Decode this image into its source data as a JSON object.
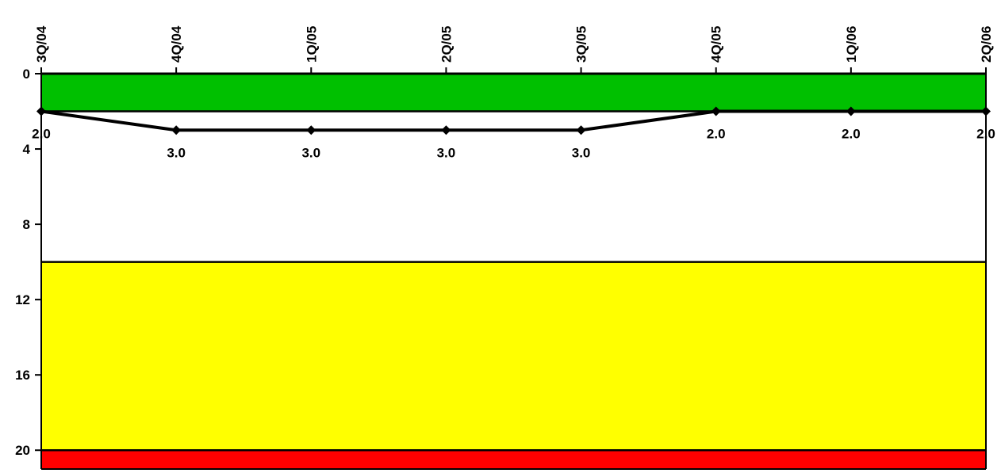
{
  "chart_data": {
    "type": "line",
    "title": "",
    "xlabel": "",
    "ylabel": "",
    "x_position": "top",
    "y_inverted": true,
    "ylim": [
      0,
      21
    ],
    "categories": [
      "3Q/04",
      "4Q/04",
      "1Q/05",
      "2Q/05",
      "3Q/05",
      "4Q/05",
      "1Q/06",
      "2Q/06"
    ],
    "y_ticks": [
      0,
      4,
      8,
      12,
      16,
      20
    ],
    "series": [
      {
        "values": [
          2.0,
          3.0,
          3.0,
          3.0,
          3.0,
          2.0,
          2.0,
          2.0
        ],
        "labels": [
          "2.0",
          "3.0",
          "3.0",
          "3.0",
          "3.0",
          "2.0",
          "2.0",
          "2.0"
        ],
        "color": "#000000"
      }
    ],
    "bands": [
      {
        "from": 0,
        "to": 2,
        "color": "#00c000"
      },
      {
        "from": 2,
        "to": 10,
        "color": "#ffffff"
      },
      {
        "from": 10,
        "to": 20,
        "color": "#ffff00"
      },
      {
        "from": 20,
        "to": 21,
        "color": "#ff0000"
      }
    ],
    "grid": false,
    "legend": "none"
  }
}
